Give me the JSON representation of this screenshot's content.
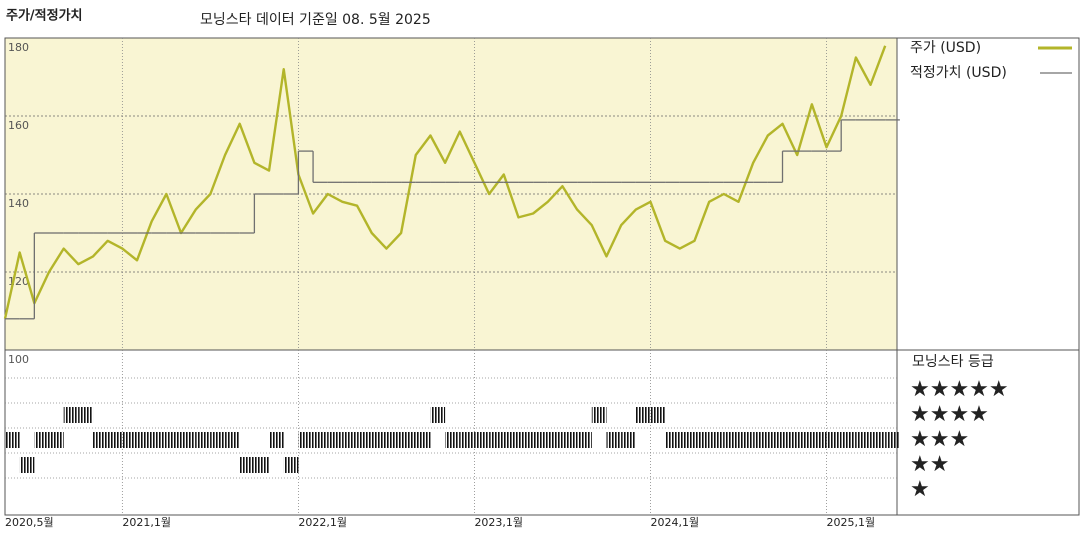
{
  "chart_data": {
    "type": "line",
    "title": "주가/적정가치",
    "subtitle": "모닝스타 데이터 기준일 08. 5월 2025",
    "x": [
      "2020-05",
      "2020-06",
      "2020-07",
      "2020-08",
      "2020-09",
      "2020-10",
      "2020-11",
      "2020-12",
      "2021-01",
      "2021-02",
      "2021-03",
      "2021-04",
      "2021-05",
      "2021-06",
      "2021-07",
      "2021-08",
      "2021-09",
      "2021-10",
      "2021-11",
      "2021-12",
      "2022-01",
      "2022-02",
      "2022-03",
      "2022-04",
      "2022-05",
      "2022-06",
      "2022-07",
      "2022-08",
      "2022-09",
      "2022-10",
      "2022-11",
      "2022-12",
      "2023-01",
      "2023-02",
      "2023-03",
      "2023-04",
      "2023-05",
      "2023-06",
      "2023-07",
      "2023-08",
      "2023-09",
      "2023-10",
      "2023-11",
      "2023-12",
      "2024-01",
      "2024-02",
      "2024-03",
      "2024-04",
      "2024-05",
      "2024-06",
      "2024-07",
      "2024-08",
      "2024-09",
      "2024-10",
      "2024-11",
      "2024-12",
      "2025-01",
      "2025-02",
      "2025-03",
      "2025-04",
      "2025-05"
    ],
    "series": [
      {
        "name": "주가 (USD)",
        "color": "#b3b52a",
        "step": false,
        "values": [
          108,
          125,
          112,
          120,
          126,
          122,
          124,
          128,
          126,
          123,
          133,
          140,
          130,
          136,
          140,
          150,
          158,
          148,
          146,
          172,
          145,
          135,
          140,
          138,
          137,
          130,
          126,
          130,
          150,
          155,
          148,
          156,
          148,
          140,
          145,
          134,
          135,
          138,
          142,
          136,
          132,
          124,
          132,
          136,
          138,
          128,
          126,
          128,
          138,
          140,
          138,
          148,
          155,
          158,
          150,
          163,
          152,
          160,
          175,
          168,
          178
        ]
      },
      {
        "name": "적정가치 (USD)",
        "color": "#707070",
        "step": true,
        "values": [
          108,
          108,
          130,
          130,
          130,
          130,
          130,
          130,
          130,
          130,
          130,
          130,
          130,
          130,
          130,
          130,
          130,
          140,
          140,
          140,
          151,
          143,
          143,
          143,
          143,
          143,
          143,
          143,
          143,
          143,
          143,
          143,
          143,
          143,
          143,
          143,
          143,
          143,
          143,
          143,
          143,
          143,
          143,
          143,
          143,
          143,
          143,
          143,
          143,
          143,
          143,
          143,
          143,
          151,
          151,
          151,
          151,
          159,
          159,
          159,
          159
        ]
      }
    ],
    "ylim": [
      100,
      180
    ],
    "yticks": [
      100,
      120,
      140,
      160,
      180
    ],
    "xticks": [
      {
        "value": "2020-05",
        "label": "2020,5월"
      },
      {
        "value": "2021-01",
        "label": "2021,1월"
      },
      {
        "value": "2022-01",
        "label": "2022,1월"
      },
      {
        "value": "2023-01",
        "label": "2023,1월"
      },
      {
        "value": "2024-01",
        "label": "2024,1월"
      },
      {
        "value": "2025-01",
        "label": "2025,1월"
      }
    ],
    "grid": true,
    "background": "#f9f5d3",
    "ratings": {
      "title": "모닝스타 등급",
      "color": "#111111",
      "levels": [
        {
          "value": 5,
          "label": "★★★★★"
        },
        {
          "value": 4,
          "label": "★★★★"
        },
        {
          "value": 3,
          "label": "★★★"
        },
        {
          "value": 2,
          "label": "★★"
        },
        {
          "value": 1,
          "label": "★"
        }
      ],
      "values": [
        3,
        2,
        3,
        3,
        4,
        4,
        3,
        3,
        3,
        3,
        3,
        3,
        3,
        3,
        3,
        3,
        2,
        2,
        3,
        2,
        3,
        3,
        3,
        3,
        3,
        3,
        3,
        3,
        3,
        4,
        3,
        3,
        3,
        3,
        3,
        3,
        3,
        3,
        3,
        3,
        4,
        3,
        3,
        4,
        4,
        3,
        3,
        3,
        3,
        3,
        3,
        3,
        3,
        3,
        3,
        3,
        3,
        3,
        3,
        3,
        3
      ]
    }
  }
}
